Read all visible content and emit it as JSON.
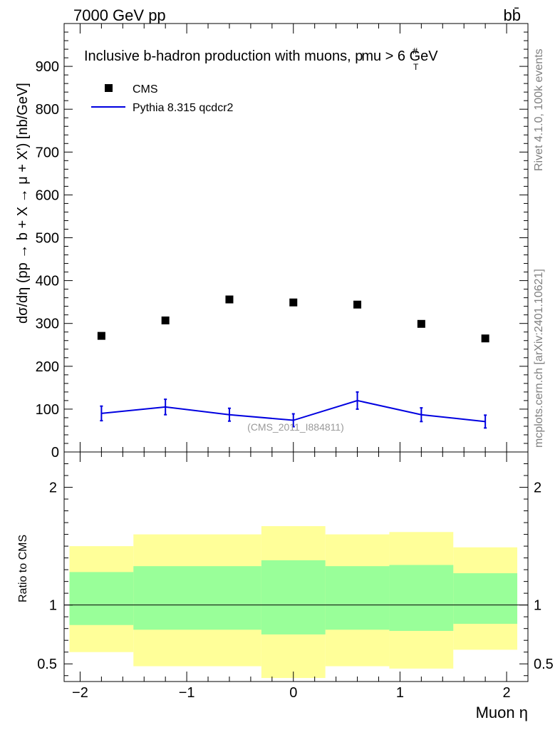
{
  "header": {
    "energy_label": "7000 GeV pp",
    "process_label": "bb̄"
  },
  "side_labels": {
    "rivet": "Rivet 4.1.0,  100k events",
    "site": "mcplots.cern.ch [arXiv:2401.10621]"
  },
  "colors": {
    "mc": "#0000e0",
    "band_outer": "#ffff99",
    "band_inner": "#99ff99",
    "data": "#000000"
  },
  "chart_data": [
    {
      "type": "scatter",
      "title": "Inclusive b-hadron production with muons, p_T^mu > 6 GeV",
      "title_parts": {
        "main": "Inclusive b-hadron production with muons, ",
        "p": "p",
        "sub": "T",
        "sup": "#",
        "tail": "mu > 6 GeV"
      },
      "ylabel": "dσ/dη (pp → b + X → μ + X') [nb/GeV]",
      "xlabel": "",
      "xlim": [
        -2.15,
        2.2
      ],
      "ylim": [
        0,
        1000
      ],
      "yticks": [
        0,
        100,
        200,
        300,
        400,
        500,
        600,
        700,
        800,
        900
      ],
      "ytick_labels": [
        "0",
        "100",
        "200",
        "300",
        "400",
        "500",
        "600",
        "700",
        "800",
        "900"
      ],
      "legend_position": "top-left",
      "watermark": "(CMS_2011_I884811)",
      "series": [
        {
          "name": "CMS",
          "marker": "square",
          "x": [
            -1.8,
            -1.2,
            -0.6,
            0.0,
            0.6,
            1.2,
            1.8
          ],
          "values": [
            271,
            307,
            356,
            349,
            344,
            299,
            265
          ]
        },
        {
          "name": "Pythia 8.315 qcdcr2",
          "marker": "line",
          "x": [
            -1.8,
            -1.2,
            -0.6,
            0.0,
            0.6,
            1.2,
            1.8
          ],
          "values": [
            90,
            105,
            87,
            74,
            120,
            87,
            71
          ],
          "errors": [
            17,
            18,
            15,
            15,
            20,
            16,
            15
          ]
        }
      ]
    },
    {
      "type": "area",
      "title": "",
      "ylabel": "Ratio to CMS",
      "xlabel": "Muon η",
      "xlim": [
        -2.15,
        2.2
      ],
      "ylim": [
        0.35,
        2.3
      ],
      "yticks": [
        0.5,
        1,
        2
      ],
      "ytick_labels": [
        "0.5",
        "1",
        "2"
      ],
      "xticks": [
        -2,
        -1,
        0,
        1,
        2
      ],
      "xtick_labels": [
        "−2",
        "−1",
        "0",
        "1",
        "2"
      ],
      "reference_line": 1,
      "bins": [
        -2.1,
        -1.5,
        -0.3,
        0.3,
        0.9,
        1.5,
        2.1
      ],
      "bins_note": "band edges per bin: [-2.1,-1.5],[-1.5,-0.3],[-0.3,0.3],[0.3,0.9],[0.9,1.5],[1.5,2.1]",
      "band_inner": [
        {
          "x0": -2.1,
          "x1": -1.5,
          "lo": 0.83,
          "hi": 1.28
        },
        {
          "x0": -1.5,
          "x1": -0.3,
          "lo": 0.79,
          "hi": 1.33
        },
        {
          "x0": -0.3,
          "x1": 0.3,
          "lo": 0.75,
          "hi": 1.38
        },
        {
          "x0": 0.3,
          "x1": 0.9,
          "lo": 0.79,
          "hi": 1.33
        },
        {
          "x0": 0.9,
          "x1": 1.5,
          "lo": 0.78,
          "hi": 1.34
        },
        {
          "x0": 1.5,
          "x1": 2.1,
          "lo": 0.84,
          "hi": 1.27
        }
      ],
      "band_outer": [
        {
          "x0": -2.1,
          "x1": -1.5,
          "lo": 0.6,
          "hi": 1.5
        },
        {
          "x0": -1.5,
          "x1": -0.3,
          "lo": 0.48,
          "hi": 1.6
        },
        {
          "x0": -0.3,
          "x1": 0.3,
          "lo": 0.38,
          "hi": 1.67
        },
        {
          "x0": 0.3,
          "x1": 0.9,
          "lo": 0.48,
          "hi": 1.6
        },
        {
          "x0": 0.9,
          "x1": 1.5,
          "lo": 0.46,
          "hi": 1.62
        },
        {
          "x0": 1.5,
          "x1": 2.1,
          "lo": 0.62,
          "hi": 1.49
        }
      ]
    }
  ]
}
